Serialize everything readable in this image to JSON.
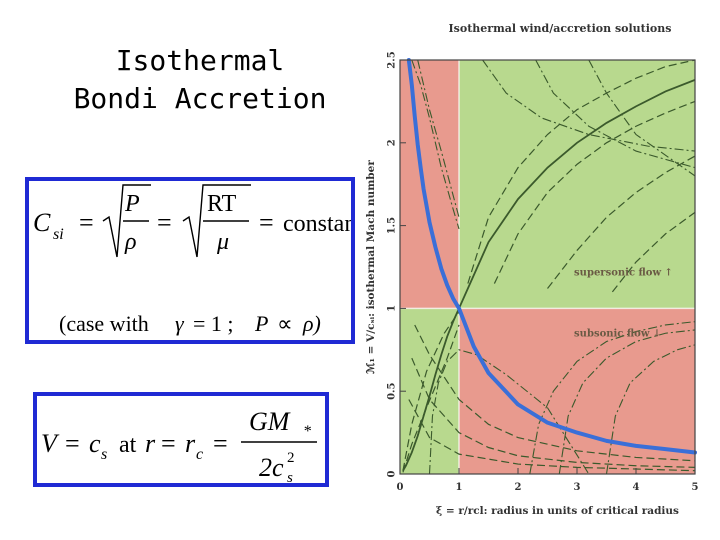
{
  "slide": {
    "title_line1": "Isothermal",
    "title_line2": "Bondi Accretion"
  },
  "equation1": {
    "lhs_C": "C",
    "lhs_sub": "si",
    "eq": "=",
    "P": "P",
    "rho": "ρ",
    "RT": "RT",
    "mu": "μ",
    "constant": "constant",
    "case_text": "(case with",
    "gamma": "γ",
    "eq_one": "= 1 ;",
    "prop_P": "P",
    "propto": "∝",
    "prop_rho": "ρ)"
  },
  "equation2": {
    "V": "V",
    "eq": "=",
    "c": "c",
    "s": "s",
    "at": "at",
    "r": "r",
    "rc_r": "r",
    "rc_sub": "c",
    "GM": "GM",
    "star": "*",
    "two_c": "2c",
    "c_sup": "2",
    "c_sub": "s"
  },
  "chart": {
    "title": "Isothermal wind/accretion solutions",
    "ylabel": "ℳ₁ = V/cₛᵢ: isothermal Mach number",
    "xlabel": "ξ = r/rcl: radius in units of critical radius",
    "xticks": [
      "0",
      "1",
      "2",
      "3",
      "4",
      "5"
    ],
    "yticks": [
      "0",
      "0.5",
      "1",
      "1.5",
      "2",
      "2.5"
    ],
    "supersonic": "supersonic flow ↑",
    "subsonic": "subsonic flow ↓",
    "colors": {
      "red": "#e89a8e",
      "green": "#b8d98e",
      "blue": "#3a6fd8",
      "line": "#3b5a2c"
    }
  },
  "chart_data": {
    "type": "line",
    "xlim": [
      0,
      5
    ],
    "ylim": [
      0,
      2.5
    ],
    "critical_point": {
      "x": 1,
      "y": 1
    },
    "regions": [
      {
        "x": [
          0,
          1
        ],
        "y": [
          1,
          2.5
        ],
        "color": "red"
      },
      {
        "x": [
          1,
          5
        ],
        "y": [
          1,
          2.5
        ],
        "color": "green"
      },
      {
        "x": [
          0,
          1
        ],
        "y": [
          0,
          1
        ],
        "color": "green"
      },
      {
        "x": [
          1,
          5
        ],
        "y": [
          0,
          1
        ],
        "color": "red"
      }
    ],
    "accretion_curve": {
      "x": [
        0.15,
        0.2,
        0.25,
        0.3,
        0.35,
        0.4,
        0.5,
        0.6,
        0.7,
        0.8,
        0.9,
        1.0,
        1.25,
        1.5,
        2,
        2.5,
        3,
        3.5,
        4,
        4.5,
        5
      ],
      "y": [
        2.5,
        2.35,
        2.16,
        1.99,
        1.85,
        1.72,
        1.52,
        1.37,
        1.24,
        1.14,
        1.06,
        1.0,
        0.77,
        0.61,
        0.42,
        0.31,
        0.25,
        0.2,
        0.17,
        0.15,
        0.13
      ]
    },
    "wind_curve": {
      "x": [
        0.05,
        0.1,
        0.2,
        0.3,
        0.4,
        0.5,
        0.6,
        0.7,
        0.8,
        0.9,
        1.0,
        1.5,
        2,
        2.5,
        3,
        3.5,
        4,
        4.5,
        5
      ],
      "y": [
        0.02,
        0.05,
        0.13,
        0.23,
        0.35,
        0.47,
        0.6,
        0.72,
        0.83,
        0.92,
        1.0,
        1.4,
        1.66,
        1.85,
        2.0,
        2.12,
        2.22,
        2.31,
        2.38
      ]
    },
    "dashed_supersonic": [
      {
        "x": [
          1.15,
          1.5,
          2,
          2.5,
          3,
          3.5,
          4,
          4.5,
          5
        ],
        "y": [
          1.15,
          1.55,
          1.85,
          2.05,
          2.2,
          2.3,
          2.39,
          2.46,
          2.5
        ]
      },
      {
        "x": [
          1.6,
          2,
          2.5,
          3,
          3.5,
          4,
          4.5,
          5
        ],
        "y": [
          1.15,
          1.45,
          1.7,
          1.87,
          2.0,
          2.1,
          2.18,
          2.25
        ]
      },
      {
        "x": [
          2.5,
          3,
          3.5,
          4,
          4.5,
          5
        ],
        "y": [
          1.12,
          1.35,
          1.55,
          1.7,
          1.82,
          1.92
        ]
      },
      {
        "x": [
          3.6,
          4,
          4.5,
          5
        ],
        "y": [
          1.1,
          1.28,
          1.45,
          1.58
        ]
      }
    ],
    "dashed_subsonic": [
      {
        "x": [
          0.25,
          0.5,
          1,
          1.5,
          2,
          3,
          4,
          5
        ],
        "y": [
          0.9,
          0.72,
          0.45,
          0.3,
          0.22,
          0.14,
          0.1,
          0.08
        ]
      },
      {
        "x": [
          0.2,
          0.5,
          1,
          1.5,
          2,
          3,
          4,
          5
        ],
        "y": [
          0.7,
          0.45,
          0.25,
          0.16,
          0.11,
          0.07,
          0.05,
          0.04
        ]
      },
      {
        "x": [
          0.15,
          0.5,
          1,
          2,
          3,
          4,
          5
        ],
        "y": [
          0.45,
          0.22,
          0.12,
          0.06,
          0.04,
          0.03,
          0.02
        ]
      },
      {
        "x": [
          0.05,
          0.2,
          0.45,
          0.75,
          1.0
        ],
        "y": [
          0.02,
          0.3,
          0.62,
          0.85,
          0.98
        ]
      },
      {
        "x": [
          0.05,
          0.2,
          0.45,
          0.8,
          1.0
        ],
        "y": [
          0.01,
          0.18,
          0.4,
          0.7,
          0.9
        ]
      }
    ],
    "dashdot_upper_left": [
      {
        "x": [
          0.2,
          0.35,
          0.5,
          0.7,
          0.9,
          1.0
        ],
        "y": [
          2.5,
          2.35,
          2.15,
          1.85,
          1.6,
          1.48
        ]
      },
      {
        "x": [
          0.3,
          0.5,
          0.7,
          0.85,
          1.0
        ],
        "y": [
          2.5,
          2.2,
          1.95,
          1.75,
          1.55
        ]
      }
    ],
    "dashdot_closed": [
      {
        "x": [
          1.4,
          1.8,
          2.4,
          3.2,
          4.2,
          5
        ],
        "y": [
          2.5,
          2.3,
          2.15,
          2.05,
          1.98,
          1.95
        ]
      },
      {
        "x": [
          2.3,
          2.6,
          3.2,
          4,
          5
        ],
        "y": [
          2.5,
          2.3,
          2.1,
          1.95,
          1.85
        ]
      },
      {
        "x": [
          3.2,
          3.5,
          4,
          5
        ],
        "y": [
          2.5,
          2.3,
          2.05,
          1.8
        ]
      },
      {
        "x": [
          0.5,
          0.55,
          0.65,
          0.8,
          1.0,
          1.3,
          1.8,
          2.5,
          3.2
        ],
        "y": [
          0.0,
          0.35,
          0.55,
          0.68,
          0.75,
          0.72,
          0.6,
          0.4,
          0.0
        ]
      },
      {
        "x": [
          2.2,
          2.35,
          2.6,
          3,
          3.5,
          4,
          4.5,
          5
        ],
        "y": [
          0.0,
          0.3,
          0.5,
          0.68,
          0.8,
          0.86,
          0.9,
          0.92
        ]
      },
      {
        "x": [
          2.7,
          2.85,
          3.1,
          3.5,
          4,
          4.5,
          5
        ],
        "y": [
          0.0,
          0.35,
          0.55,
          0.7,
          0.8,
          0.85,
          0.87
        ]
      },
      {
        "x": [
          3.5,
          3.65,
          3.9,
          4.3,
          4.7,
          5
        ],
        "y": [
          0.0,
          0.35,
          0.55,
          0.68,
          0.75,
          0.78
        ]
      }
    ]
  }
}
